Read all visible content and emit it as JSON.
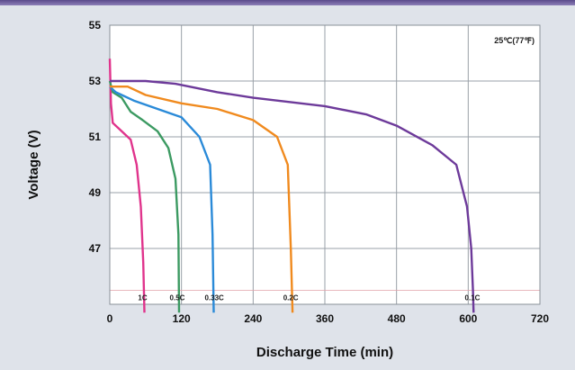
{
  "colors": {
    "background": "#dfe3ea",
    "plot_background": "#ffffff",
    "grid": "#9aa0a8",
    "header_band": "#6b5b9a"
  },
  "chart_data": {
    "type": "line",
    "title": "",
    "xlabel": "Discharge Time (min)",
    "ylabel": "Voltage (V)",
    "xlim": [
      0,
      720
    ],
    "ylim": [
      45,
      55
    ],
    "x_ticks": [
      0,
      120,
      240,
      360,
      480,
      600,
      720
    ],
    "y_ticks": [
      47,
      49,
      51,
      53,
      55
    ],
    "grid": true,
    "annotation": "25℃(77℉)",
    "series": [
      {
        "name": "1C",
        "color": "#e0348c",
        "points": [
          [
            0,
            53.8
          ],
          [
            2,
            52.2
          ],
          [
            5,
            51.5
          ],
          [
            15,
            51.3
          ],
          [
            35,
            50.9
          ],
          [
            45,
            50.0
          ],
          [
            52,
            48.5
          ],
          [
            56,
            46.5
          ],
          [
            58,
            44.7
          ]
        ]
      },
      {
        "name": "0.5C",
        "color": "#3c9a62",
        "points": [
          [
            0,
            53.0
          ],
          [
            5,
            52.6
          ],
          [
            20,
            52.4
          ],
          [
            35,
            51.9
          ],
          [
            55,
            51.6
          ],
          [
            80,
            51.2
          ],
          [
            98,
            50.6
          ],
          [
            110,
            49.5
          ],
          [
            115,
            47.5
          ],
          [
            116,
            44.7
          ]
        ]
      },
      {
        "name": "0.33C",
        "color": "#2a8ad8",
        "points": [
          [
            0,
            52.8
          ],
          [
            10,
            52.6
          ],
          [
            40,
            52.3
          ],
          [
            80,
            52.0
          ],
          [
            120,
            51.7
          ],
          [
            150,
            51.0
          ],
          [
            168,
            50.0
          ],
          [
            172,
            47.5
          ],
          [
            174,
            44.7
          ]
        ]
      },
      {
        "name": "0.2C",
        "color": "#f08a1e",
        "points": [
          [
            0,
            52.8
          ],
          [
            30,
            52.8
          ],
          [
            60,
            52.5
          ],
          [
            120,
            52.2
          ],
          [
            180,
            52.0
          ],
          [
            240,
            51.6
          ],
          [
            280,
            51.0
          ],
          [
            298,
            50.0
          ],
          [
            303,
            47.0
          ],
          [
            306,
            44.7
          ]
        ]
      },
      {
        "name": "0.1C",
        "color": "#6d3a9a",
        "points": [
          [
            0,
            53.0
          ],
          [
            60,
            53.0
          ],
          [
            110,
            52.9
          ],
          [
            180,
            52.6
          ],
          [
            240,
            52.4
          ],
          [
            360,
            52.1
          ],
          [
            430,
            51.8
          ],
          [
            480,
            51.4
          ],
          [
            540,
            50.7
          ],
          [
            580,
            50.0
          ],
          [
            598,
            48.5
          ],
          [
            605,
            47.0
          ],
          [
            608,
            45.5
          ],
          [
            609,
            44.7
          ]
        ]
      }
    ],
    "curve_labels": [
      {
        "text": "1C",
        "x": 58
      },
      {
        "text": "0.5C",
        "x": 116
      },
      {
        "text": "0.33C",
        "x": 178
      },
      {
        "text": "0.2C",
        "x": 306
      },
      {
        "text": "0.1C",
        "x": 610
      }
    ]
  }
}
